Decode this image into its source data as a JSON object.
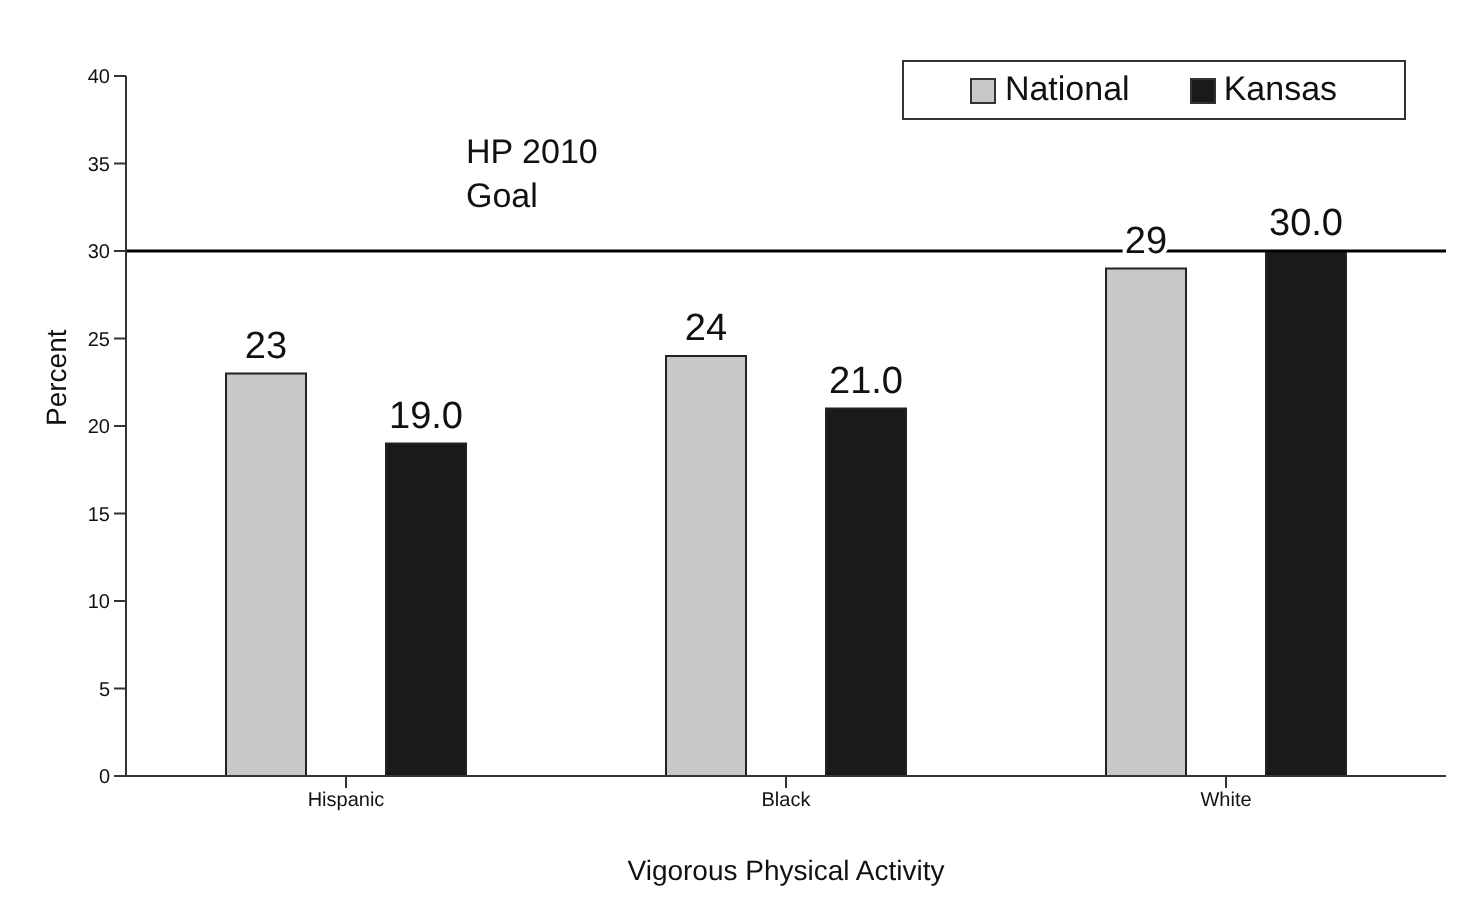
{
  "chart_data": {
    "type": "bar",
    "xlabel": "Vigorous Physical Activity",
    "ylabel": "Percent",
    "categories": [
      "Hispanic",
      "Black",
      "White"
    ],
    "series": [
      {
        "name": "National",
        "color": "#c8c8c8",
        "values": [
          23,
          24,
          29
        ],
        "value_labels": [
          "23",
          "24",
          "29"
        ]
      },
      {
        "name": "Kansas",
        "color": "#1a1a1a",
        "values": [
          19,
          21,
          30
        ],
        "value_labels": [
          "19.0",
          "21.0",
          "30.0"
        ]
      }
    ],
    "ylim": [
      0,
      40
    ],
    "yticks": [
      0,
      5,
      10,
      15,
      20,
      25,
      30,
      35,
      40
    ],
    "grid": false,
    "legend": "top right",
    "ref_lines": [
      {
        "axis": "y",
        "value": 30,
        "label": "HP 2010 Goal",
        "color": "#000000"
      }
    ]
  }
}
